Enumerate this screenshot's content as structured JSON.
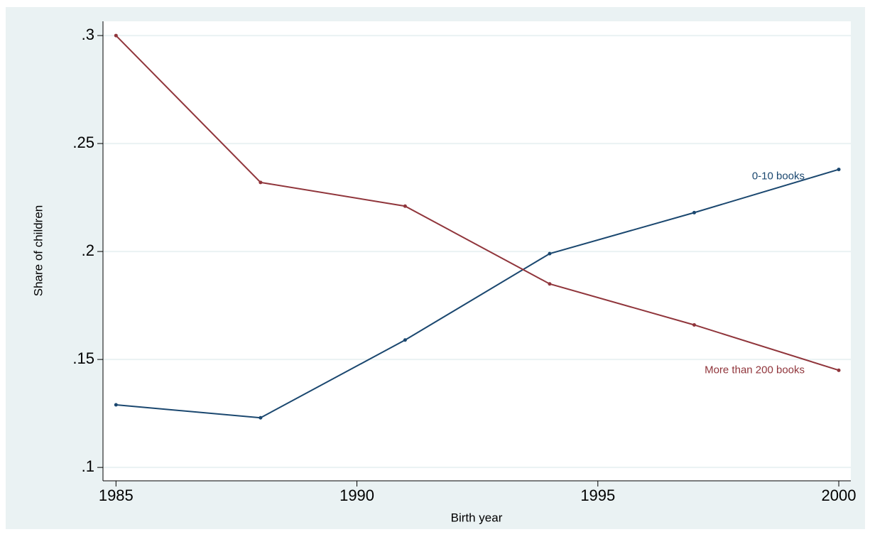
{
  "chart_data": {
    "type": "line",
    "x_label": "Birth year",
    "y_label": "Share of children",
    "x": [
      1985,
      1988,
      1991,
      1994,
      1997,
      2000
    ],
    "series": [
      {
        "name": "0-10 books",
        "color": "#1a476f",
        "values": [
          0.129,
          0.123,
          0.159,
          0.199,
          0.218,
          0.238
        ]
      },
      {
        "name": "More than 200 books",
        "color": "#90353b",
        "values": [
          0.3,
          0.232,
          0.221,
          0.185,
          0.166,
          0.145
        ]
      }
    ],
    "xlim": [
      1984.73,
      2000.25
    ],
    "ylim": [
      0.0938,
      0.3066
    ],
    "xticks": [
      1985,
      1990,
      1995,
      2000
    ],
    "yticks": [
      {
        "value": 0.1,
        "label": ".1"
      },
      {
        "value": 0.15,
        "label": ".15"
      },
      {
        "value": 0.2,
        "label": ".2"
      },
      {
        "value": 0.25,
        "label": ".25"
      },
      {
        "value": 0.3,
        "label": ".3"
      }
    ],
    "grid": true
  }
}
